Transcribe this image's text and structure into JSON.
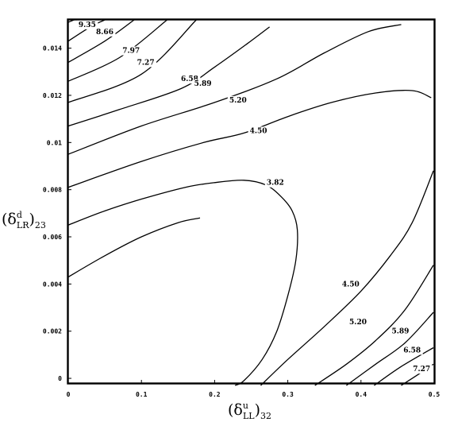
{
  "chart_data": {
    "type": "contour",
    "xlabel": {
      "base": "(δ",
      "sup": "u",
      "sub": "LL",
      "close": ")",
      "tail": "32"
    },
    "ylabel": {
      "base": "(δ",
      "sup": "d",
      "sub": "LR",
      "close": ")",
      "tail": "23"
    },
    "xlim": [
      0,
      0.5
    ],
    "ylim": [
      -0.0002,
      0.0152
    ],
    "xticks": [
      {
        "value": 0,
        "label": "0"
      },
      {
        "value": 0.1,
        "label": "0.1"
      },
      {
        "value": 0.2,
        "label": "0.2"
      },
      {
        "value": 0.3,
        "label": "0.3"
      },
      {
        "value": 0.4,
        "label": "0.4"
      },
      {
        "value": 0.5,
        "label": "0.5"
      }
    ],
    "yticks": [
      {
        "value": 0,
        "label": "0"
      },
      {
        "value": 0.002,
        "label": "0.002"
      },
      {
        "value": 0.004,
        "label": "0.004"
      },
      {
        "value": 0.006,
        "label": "0.006"
      },
      {
        "value": 0.008,
        "label": "0.008"
      },
      {
        "value": 0.01,
        "label": "0.01"
      },
      {
        "value": 0.012,
        "label": "0.012"
      },
      {
        "value": 0.014,
        "label": "0.014"
      }
    ],
    "contours": [
      {
        "level": "9.35",
        "points": [
          [
            0,
            0.0151
          ],
          [
            0.008,
            0.0152
          ]
        ],
        "label": {
          "text": "9.35",
          "x": 0.014,
          "y": 0.0149
        }
      },
      {
        "level": "8.66",
        "points": [
          [
            0,
            0.0143
          ],
          [
            0.03,
            0.0149
          ],
          [
            0.05,
            0.0152
          ]
        ],
        "label": {
          "text": "8.66",
          "x": 0.038,
          "y": 0.0146
        }
      },
      {
        "level": "7.97",
        "points": [
          [
            0,
            0.0134
          ],
          [
            0.05,
            0.0143
          ],
          [
            0.09,
            0.0152
          ]
        ],
        "label": {
          "text": "7.97",
          "x": 0.074,
          "y": 0.0138
        }
      },
      {
        "level": "7.27",
        "points": [
          [
            0,
            0.0126
          ],
          [
            0.07,
            0.0136
          ],
          [
            0.135,
            0.0152
          ]
        ],
        "label": {
          "text": "7.27",
          "x": 0.094,
          "y": 0.0133
        }
      },
      {
        "level": "6.58",
        "points": [
          [
            0,
            0.0117
          ],
          [
            0.1,
            0.0129
          ],
          [
            0.175,
            0.0152
          ]
        ],
        "label": {
          "text": "6.58",
          "x": 0.154,
          "y": 0.0126
        }
      },
      {
        "level": "5.89",
        "points": [
          [
            0,
            0.0107
          ],
          [
            0.07,
            0.0114
          ],
          [
            0.155,
            0.0123
          ],
          [
            0.2,
            0.0132
          ],
          [
            0.245,
            0.0142
          ],
          [
            0.275,
            0.0149
          ]
        ],
        "label": {
          "text": "5.89",
          "x": 0.172,
          "y": 0.0124
        }
      },
      {
        "level": "5.20",
        "points": [
          [
            0,
            0.0095
          ],
          [
            0.1,
            0.0107
          ],
          [
            0.2,
            0.0117
          ],
          [
            0.285,
            0.0127
          ],
          [
            0.35,
            0.0138
          ],
          [
            0.41,
            0.0147
          ],
          [
            0.455,
            0.015
          ]
        ],
        "label": {
          "text": "5.20",
          "x": 0.22,
          "y": 0.0117
        }
      },
      {
        "level": "4.50",
        "points": [
          [
            0,
            0.0081
          ],
          [
            0.1,
            0.0092
          ],
          [
            0.185,
            0.01
          ],
          [
            0.24,
            0.0104
          ],
          [
            0.3,
            0.0111
          ],
          [
            0.36,
            0.0117
          ],
          [
            0.42,
            0.0121
          ],
          [
            0.47,
            0.0122
          ],
          [
            0.496,
            0.0119
          ]
        ],
        "label": {
          "text": "4.50",
          "x": 0.248,
          "y": 0.0104
        }
      },
      {
        "level": "3.82",
        "points": [
          [
            0,
            0.0065
          ],
          [
            0.05,
            0.0071
          ],
          [
            0.1,
            0.0076
          ],
          [
            0.16,
            0.0081
          ],
          [
            0.2,
            0.0083
          ],
          [
            0.24,
            0.0084
          ],
          [
            0.27,
            0.0082
          ],
          [
            0.291,
            0.0077
          ],
          [
            0.306,
            0.0071
          ],
          [
            0.313,
            0.0063
          ],
          [
            0.311,
            0.005
          ],
          [
            0.3,
            0.0035
          ],
          [
            0.285,
            0.002
          ],
          [
            0.265,
            0.0008
          ],
          [
            0.24,
            -0.0001
          ],
          [
            0.228,
            -0.0003
          ]
        ],
        "label": {
          "text": "3.82",
          "x": 0.271,
          "y": 0.0082
        }
      },
      {
        "level": "4.50",
        "points": [
          [
            0,
            0.0043
          ],
          [
            0.05,
            0.0052
          ],
          [
            0.1,
            0.006
          ],
          [
            0.15,
            0.0066
          ],
          [
            0.18,
            0.0068
          ]
        ],
        "label": null
      },
      {
        "level": "4.50",
        "points": [
          [
            0.263,
            -0.0003
          ],
          [
            0.3,
            0.0008
          ],
          [
            0.35,
            0.0022
          ],
          [
            0.4,
            0.0037
          ],
          [
            0.44,
            0.0052
          ],
          [
            0.47,
            0.0066
          ],
          [
            0.499,
            0.0088
          ]
        ],
        "label": {
          "text": "4.50",
          "x": 0.374,
          "y": 0.0039
        }
      },
      {
        "level": "5.20",
        "points": [
          [
            0.337,
            -0.0003
          ],
          [
            0.38,
            0.0006
          ],
          [
            0.42,
            0.0016
          ],
          [
            0.46,
            0.0029
          ],
          [
            0.499,
            0.0048
          ]
        ],
        "label": {
          "text": "5.20",
          "x": 0.384,
          "y": 0.0023
        }
      },
      {
        "level": "5.89",
        "points": [
          [
            0.38,
            -0.0003
          ],
          [
            0.42,
            0.0006
          ],
          [
            0.46,
            0.0015
          ],
          [
            0.499,
            0.0028
          ]
        ],
        "label": {
          "text": "5.89",
          "x": 0.442,
          "y": 0.0019
        }
      },
      {
        "level": "6.58",
        "points": [
          [
            0.418,
            -0.0003
          ],
          [
            0.455,
            0.0005
          ],
          [
            0.499,
            0.0013
          ]
        ],
        "label": {
          "text": "6.58",
          "x": 0.458,
          "y": 0.0011
        }
      },
      {
        "level": "7.27",
        "points": [
          [
            0.455,
            -0.0003
          ],
          [
            0.48,
            0.0002
          ],
          [
            0.499,
            0.0006
          ]
        ],
        "label": {
          "text": "7.27",
          "x": 0.471,
          "y": 0.0003
        }
      }
    ]
  }
}
